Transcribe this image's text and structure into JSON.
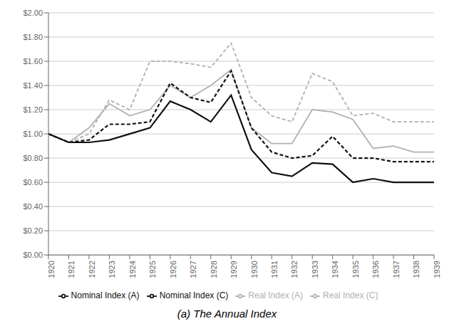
{
  "chart_data": {
    "type": "line",
    "title": "(a) The Annual Index",
    "x": [
      1920,
      1921,
      1922,
      1923,
      1924,
      1925,
      1926,
      1927,
      1928,
      1929,
      1930,
      1931,
      1932,
      1933,
      1934,
      1935,
      1936,
      1937,
      1938,
      1939
    ],
    "xlim": [
      1920,
      1939
    ],
    "xticks": [
      1920,
      1921,
      1922,
      1923,
      1924,
      1925,
      1926,
      1927,
      1928,
      1929,
      1930,
      1931,
      1932,
      1933,
      1934,
      1935,
      1936,
      1937,
      1938,
      1939
    ],
    "ylim": [
      0.0,
      2.0
    ],
    "yticks": [
      {
        "value": 0.0,
        "label": "$0.00"
      },
      {
        "value": 0.2,
        "label": "$0.20"
      },
      {
        "value": 0.4,
        "label": "$0.40"
      },
      {
        "value": 0.6,
        "label": "$0.60"
      },
      {
        "value": 0.8,
        "label": "$0.80"
      },
      {
        "value": 1.0,
        "label": "$1.00"
      },
      {
        "value": 1.2,
        "label": "$1.20"
      },
      {
        "value": 1.4,
        "label": "$1.40"
      },
      {
        "value": 1.6,
        "label": "$1.60"
      },
      {
        "value": 1.8,
        "label": "$1.80"
      },
      {
        "value": 2.0,
        "label": "$2.00"
      }
    ],
    "grid": "y",
    "legend": "bottom",
    "series": [
      {
        "name": "Real Index (C)",
        "color": "#b0b0b0",
        "line_style": "solid",
        "values": [
          1.0,
          0.93,
          1.05,
          1.25,
          1.15,
          1.2,
          1.4,
          1.3,
          1.4,
          1.53,
          1.05,
          0.92,
          0.92,
          1.2,
          1.18,
          1.12,
          0.88,
          0.9,
          0.85,
          0.85
        ]
      },
      {
        "name": "Real Index (A)",
        "color": "#b0b0b0",
        "line_style": "dashed",
        "values": [
          1.0,
          0.93,
          1.0,
          1.28,
          1.2,
          1.6,
          1.6,
          1.58,
          1.55,
          1.75,
          1.3,
          1.15,
          1.1,
          1.5,
          1.43,
          1.15,
          1.17,
          1.1,
          1.1,
          1.1
        ]
      },
      {
        "name": "Nominal Index (C)",
        "color": "#111111",
        "line_style": "solid",
        "values": [
          1.0,
          0.93,
          0.93,
          0.95,
          1.0,
          1.05,
          1.27,
          1.2,
          1.1,
          1.32,
          0.87,
          0.68,
          0.65,
          0.76,
          0.75,
          0.6,
          0.63,
          0.6,
          0.6,
          0.6
        ]
      },
      {
        "name": "Nominal Index (A)",
        "color": "#111111",
        "line_style": "dashed",
        "values": [
          1.0,
          0.93,
          0.95,
          1.08,
          1.08,
          1.1,
          1.42,
          1.3,
          1.26,
          1.52,
          1.05,
          0.85,
          0.8,
          0.82,
          0.98,
          0.8,
          0.8,
          0.77,
          0.77,
          0.77
        ]
      }
    ]
  }
}
